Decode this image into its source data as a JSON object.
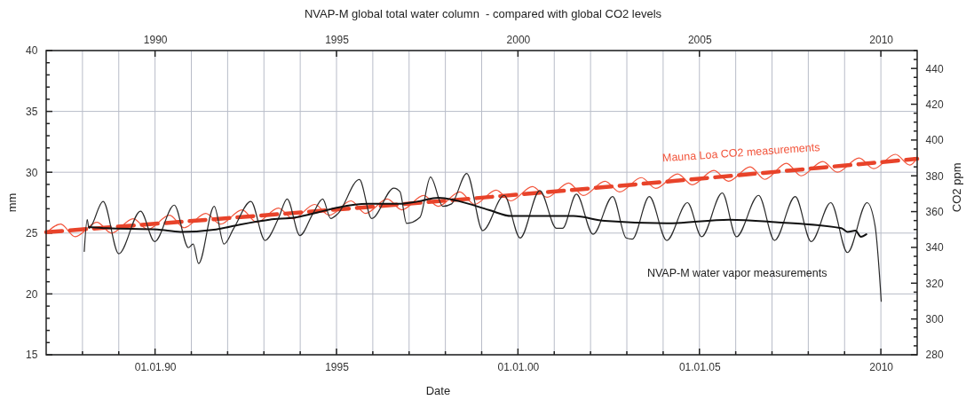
{
  "chart_data": {
    "type": "line",
    "title": "NVAP-M global total water column  - compared with global CO2 levels",
    "xlabel": "Date",
    "ylabel": "mm",
    "y2label": "CO2 ppm",
    "xlim": [
      1987,
      2011
    ],
    "xticks": [
      {
        "value": 1988,
        "label": null
      },
      {
        "value": 1989,
        "label": null
      },
      {
        "value": 1990,
        "label": "01.01.90"
      },
      {
        "value": 1991,
        "label": null
      },
      {
        "value": 1992,
        "label": null
      },
      {
        "value": 1993,
        "label": null
      },
      {
        "value": 1994,
        "label": null
      },
      1995,
      {
        "value": 1996,
        "label": null
      },
      {
        "value": 1997,
        "label": null
      },
      {
        "value": 1998,
        "label": null
      },
      {
        "value": 1999,
        "label": null
      },
      {
        "value": 2000,
        "label": "01.01.00"
      },
      {
        "value": 2001,
        "label": null
      },
      {
        "value": 2002,
        "label": null
      },
      {
        "value": 2003,
        "label": null
      },
      {
        "value": 2004,
        "label": null
      },
      {
        "value": 2005,
        "label": "01.01.05"
      },
      {
        "value": 2006,
        "label": null
      },
      {
        "value": 2007,
        "label": null
      },
      {
        "value": 2008,
        "label": null
      },
      {
        "value": 2009,
        "label": null
      },
      2010
    ],
    "x2lim": [
      1987,
      2011
    ],
    "x2ticks": [
      1990,
      1995,
      2000,
      2005,
      2010
    ],
    "ylim": [
      15,
      40
    ],
    "yticks": [
      15,
      {
        "value": 16,
        "label": null
      },
      {
        "value": 17,
        "label": null
      },
      {
        "value": 18,
        "label": null
      },
      {
        "value": 19,
        "label": null
      },
      20,
      {
        "value": 21,
        "label": null
      },
      {
        "value": 22,
        "label": null
      },
      {
        "value": 23,
        "label": null
      },
      {
        "value": 24,
        "label": null
      },
      25,
      {
        "value": 26,
        "label": null
      },
      {
        "value": 27,
        "label": null
      },
      {
        "value": 28,
        "label": null
      },
      {
        "value": 29,
        "label": null
      },
      30,
      {
        "value": 31,
        "label": null
      },
      {
        "value": 32,
        "label": null
      },
      {
        "value": 33,
        "label": null
      },
      {
        "value": 34,
        "label": null
      },
      35,
      {
        "value": 36,
        "label": null
      },
      {
        "value": 37,
        "label": null
      },
      {
        "value": 38,
        "label": null
      },
      {
        "value": 39,
        "label": null
      },
      40
    ],
    "y2lim": [
      280,
      450
    ],
    "y2ticks": [
      280,
      {
        "value": 285,
        "label": null
      },
      {
        "value": 290,
        "label": null
      },
      {
        "value": 295,
        "label": null
      },
      300,
      {
        "value": 305,
        "label": null
      },
      {
        "value": 310,
        "label": null
      },
      {
        "value": 315,
        "label": null
      },
      320,
      {
        "value": 325,
        "label": null
      },
      {
        "value": 330,
        "label": null
      },
      {
        "value": 335,
        "label": null
      },
      340,
      {
        "value": 345,
        "label": null
      },
      {
        "value": 350,
        "label": null
      },
      {
        "value": 355,
        "label": null
      },
      360,
      {
        "value": 365,
        "label": null
      },
      {
        "value": 370,
        "label": null
      },
      {
        "value": 375,
        "label": null
      },
      380,
      {
        "value": 385,
        "label": null
      },
      {
        "value": 390,
        "label": null
      },
      {
        "value": 395,
        "label": null
      },
      400,
      {
        "value": 405,
        "label": null
      },
      {
        "value": 410,
        "label": null
      },
      {
        "value": 415,
        "label": null
      },
      420,
      {
        "value": 425,
        "label": null
      },
      {
        "value": 430,
        "label": null
      },
      {
        "value": 435,
        "label": null
      },
      440,
      {
        "value": 445,
        "label": null
      },
      {
        "value": 450,
        "label": null
      }
    ],
    "grid": true,
    "series": [
      {
        "name": "Mauna Loa CO2 measurements",
        "color": "#f2553c",
        "axis": "y2",
        "line_style": "solid",
        "x": [
          1987,
          1987.4,
          1987.8,
          1988.4,
          1988.8,
          1989.4,
          1989.8,
          1990.4,
          1990.8,
          1991.4,
          1991.8,
          1992.4,
          1992.8,
          1993.4,
          1993.8,
          1994.4,
          1994.8,
          1995.4,
          1995.8,
          1996.4,
          1996.8,
          1997.4,
          1997.8,
          1998.4,
          1998.8,
          1999.4,
          1999.8,
          2000.4,
          2000.8,
          2001.4,
          2001.8,
          2002.4,
          2002.8,
          2003.4,
          2003.8,
          2004.4,
          2004.8,
          2005.4,
          2005.8,
          2006.4,
          2006.8,
          2007.4,
          2007.8,
          2008.4,
          2008.8,
          2009.4,
          2009.8,
          2010.4,
          2010.8,
          2011
        ],
        "values": [
          348,
          353,
          346,
          354,
          348,
          356,
          350,
          358,
          351,
          359,
          353,
          361,
          354,
          362,
          356,
          364,
          358,
          366,
          359,
          367,
          361,
          369,
          363,
          371,
          364,
          372,
          366,
          374,
          368,
          376,
          369,
          377,
          371,
          379,
          373,
          381,
          375,
          383,
          377,
          385,
          378,
          387,
          380,
          388,
          382,
          390,
          384,
          392,
          386,
          390
        ]
      },
      {
        "color": "#e8432a",
        "axis": "y2",
        "line_style": "dashed",
        "x": [
          1987,
          2000,
          2011
        ],
        "values": [
          348.5,
          369.5,
          389.5
        ]
      },
      {
        "name": "NVAP-M water vapor measurements",
        "color": "#2a2a2a",
        "line_style": "solid",
        "x": [
          1988.05,
          1988.13,
          1988.18,
          1988.57,
          1989.0,
          1989.6,
          1989.99,
          1990.53,
          1990.92,
          1991.05,
          1991.2,
          1991.63,
          1991.9,
          1992.17,
          1992.64,
          1993.03,
          1993.4,
          1993.64,
          1993.99,
          1994.35,
          1994.62,
          1994.84,
          1995.04,
          1995.63,
          1995.97,
          1996.58,
          1996.75,
          1996.93,
          1997.3,
          1997.59,
          1997.93,
          1998.17,
          1998.59,
          1999.03,
          1999.62,
          2000.06,
          2000.6,
          2001.06,
          2001.23,
          2001.61,
          2002.07,
          2002.61,
          2002.98,
          2003.15,
          2003.62,
          2004.1,
          2004.67,
          2005.06,
          2005.63,
          2006.02,
          2006.63,
          2007.07,
          2007.64,
          2008.08,
          2008.62,
          2009.08,
          2009.62,
          2009.84,
          2010.01
        ],
        "values": [
          23.5,
          26.1,
          25.4,
          27.6,
          23.3,
          26.8,
          24.3,
          27.3,
          23.8,
          24.1,
          22.5,
          27.2,
          24.1,
          25.4,
          27.6,
          24.4,
          26.2,
          27.8,
          24.8,
          26.6,
          27.8,
          26.2,
          26.6,
          29.4,
          26.2,
          28.7,
          28.4,
          25.8,
          26.3,
          29.6,
          27.2,
          27.4,
          29.9,
          25.2,
          28.1,
          24.6,
          28.5,
          25.4,
          25.4,
          28.2,
          24.9,
          28.0,
          24.6,
          24.5,
          28.0,
          24.4,
          27.5,
          24.7,
          28.3,
          24.7,
          28.1,
          24.4,
          28.0,
          24.3,
          27.5,
          23.4,
          27.5,
          25.6,
          19.4
        ]
      },
      {
        "color": "#111111",
        "line_style": "solid",
        "x": [
          1988.18,
          1988.67,
          1990.06,
          1990.7,
          1991.68,
          1992.34,
          1993.15,
          1993.89,
          1994.48,
          1995.04,
          1995.85,
          1996.75,
          1997.25,
          1997.81,
          1998.4,
          1999.2,
          1999.82,
          2001.53,
          2002.39,
          2004.1,
          2005.82,
          2007.1,
          2008.91,
          2009.08,
          2009.3,
          2009.45,
          2009.6
        ],
        "values": [
          25.5,
          25.4,
          25.3,
          25.1,
          25.3,
          25.7,
          26.1,
          26.3,
          26.7,
          27.1,
          27.4,
          27.4,
          27.6,
          27.9,
          27.6,
          26.9,
          26.4,
          26.4,
          26.0,
          25.8,
          26.1,
          25.9,
          25.4,
          25.1,
          25.2,
          24.7,
          24.9
        ]
      }
    ]
  }
}
